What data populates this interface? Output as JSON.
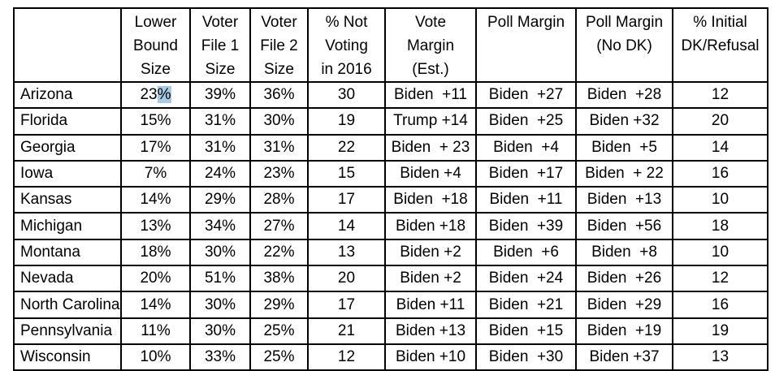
{
  "selection": {
    "color": "#a8cae4",
    "note_text": "%"
  },
  "table": {
    "columns": [
      {
        "key": "state",
        "label": ""
      },
      {
        "key": "lower_bound_size",
        "label": "Lower\nBound\nSize"
      },
      {
        "key": "voter_file_1_size",
        "label": "Voter\nFile 1\nSize"
      },
      {
        "key": "voter_file_2_size",
        "label": "Voter\nFile 2\nSize"
      },
      {
        "key": "pct_not_voting_2016",
        "label": "% Not\nVoting\nin 2016"
      },
      {
        "key": "vote_margin_est",
        "label": "Vote\nMargin\n(Est.)"
      },
      {
        "key": "poll_margin",
        "label": "Poll Margin"
      },
      {
        "key": "poll_margin_no_dk",
        "label": "Poll Margin\n(No DK)"
      },
      {
        "key": "pct_initial_dk_refusal",
        "label": "% Initial\nDK/Refusal"
      }
    ],
    "rows": [
      {
        "cells": [
          {
            "t": "Arizona"
          },
          {
            "t": "23",
            "sel": "%"
          },
          {
            "t": "39%"
          },
          {
            "t": "36%"
          },
          {
            "t": "30"
          },
          {
            "t": "Biden  +11"
          },
          {
            "t": "Biden  +27"
          },
          {
            "t": "Biden  +28"
          },
          {
            "t": "12"
          }
        ]
      },
      {
        "cells": [
          {
            "t": "Florida"
          },
          {
            "t": "15%"
          },
          {
            "t": "31%"
          },
          {
            "t": "30%"
          },
          {
            "t": "19"
          },
          {
            "t": "Trump +14"
          },
          {
            "t": "Biden  +25"
          },
          {
            "t": "Biden +32"
          },
          {
            "t": "20"
          }
        ]
      },
      {
        "cells": [
          {
            "t": "Georgia"
          },
          {
            "t": "17%"
          },
          {
            "t": "31%"
          },
          {
            "t": "31%"
          },
          {
            "t": "22"
          },
          {
            "t": "Biden  + 23"
          },
          {
            "t": "Biden  +4"
          },
          {
            "t": "Biden  +5"
          },
          {
            "t": "14"
          }
        ]
      },
      {
        "cells": [
          {
            "t": "Iowa"
          },
          {
            "t": "7%"
          },
          {
            "t": "24%"
          },
          {
            "t": "23%"
          },
          {
            "t": "15"
          },
          {
            "t": "Biden +4"
          },
          {
            "t": "Biden  +17"
          },
          {
            "t": "Biden  + 22"
          },
          {
            "t": "16"
          }
        ]
      },
      {
        "cells": [
          {
            "t": "Kansas"
          },
          {
            "t": "14%"
          },
          {
            "t": "29%"
          },
          {
            "t": "28%"
          },
          {
            "t": "17"
          },
          {
            "t": "Biden  +18"
          },
          {
            "t": "Biden  +11"
          },
          {
            "t": "Biden  +13"
          },
          {
            "t": "10"
          }
        ]
      },
      {
        "cells": [
          {
            "t": "Michigan"
          },
          {
            "t": "13%"
          },
          {
            "t": "34%"
          },
          {
            "t": "27%"
          },
          {
            "t": "14"
          },
          {
            "t": "Biden +18"
          },
          {
            "t": "Biden  +39"
          },
          {
            "t": "Biden  +56"
          },
          {
            "t": "18"
          }
        ]
      },
      {
        "cells": [
          {
            "t": "Montana"
          },
          {
            "t": "18%"
          },
          {
            "t": "30%"
          },
          {
            "t": "22%"
          },
          {
            "t": "13"
          },
          {
            "t": "Biden +2"
          },
          {
            "t": "Biden  +6"
          },
          {
            "t": "Biden  +8"
          },
          {
            "t": "10"
          }
        ]
      },
      {
        "cells": [
          {
            "t": "Nevada"
          },
          {
            "t": "20%"
          },
          {
            "t": "51%"
          },
          {
            "t": "38%"
          },
          {
            "t": "20"
          },
          {
            "t": "Biden +2"
          },
          {
            "t": "Biden  +24"
          },
          {
            "t": "Biden  +26"
          },
          {
            "t": "12"
          }
        ]
      },
      {
        "cells": [
          {
            "t": "North Carolina"
          },
          {
            "t": "14%"
          },
          {
            "t": "30%"
          },
          {
            "t": "29%"
          },
          {
            "t": "17"
          },
          {
            "t": "Biden +11"
          },
          {
            "t": "Biden  +21"
          },
          {
            "t": "Biden  +29"
          },
          {
            "t": "16"
          }
        ]
      },
      {
        "cells": [
          {
            "t": "Pennsylvania"
          },
          {
            "t": "11%"
          },
          {
            "t": "30%"
          },
          {
            "t": "25%"
          },
          {
            "t": "21"
          },
          {
            "t": "Biden +13"
          },
          {
            "t": "Biden  +15"
          },
          {
            "t": "Biden  +19"
          },
          {
            "t": "19"
          }
        ]
      },
      {
        "cells": [
          {
            "t": "Wisconsin"
          },
          {
            "t": "10%"
          },
          {
            "t": "33%"
          },
          {
            "t": "25%"
          },
          {
            "t": "12"
          },
          {
            "t": "Biden +10"
          },
          {
            "t": "Biden  +30"
          },
          {
            "t": "Biden +37"
          },
          {
            "t": "13"
          }
        ]
      }
    ]
  }
}
